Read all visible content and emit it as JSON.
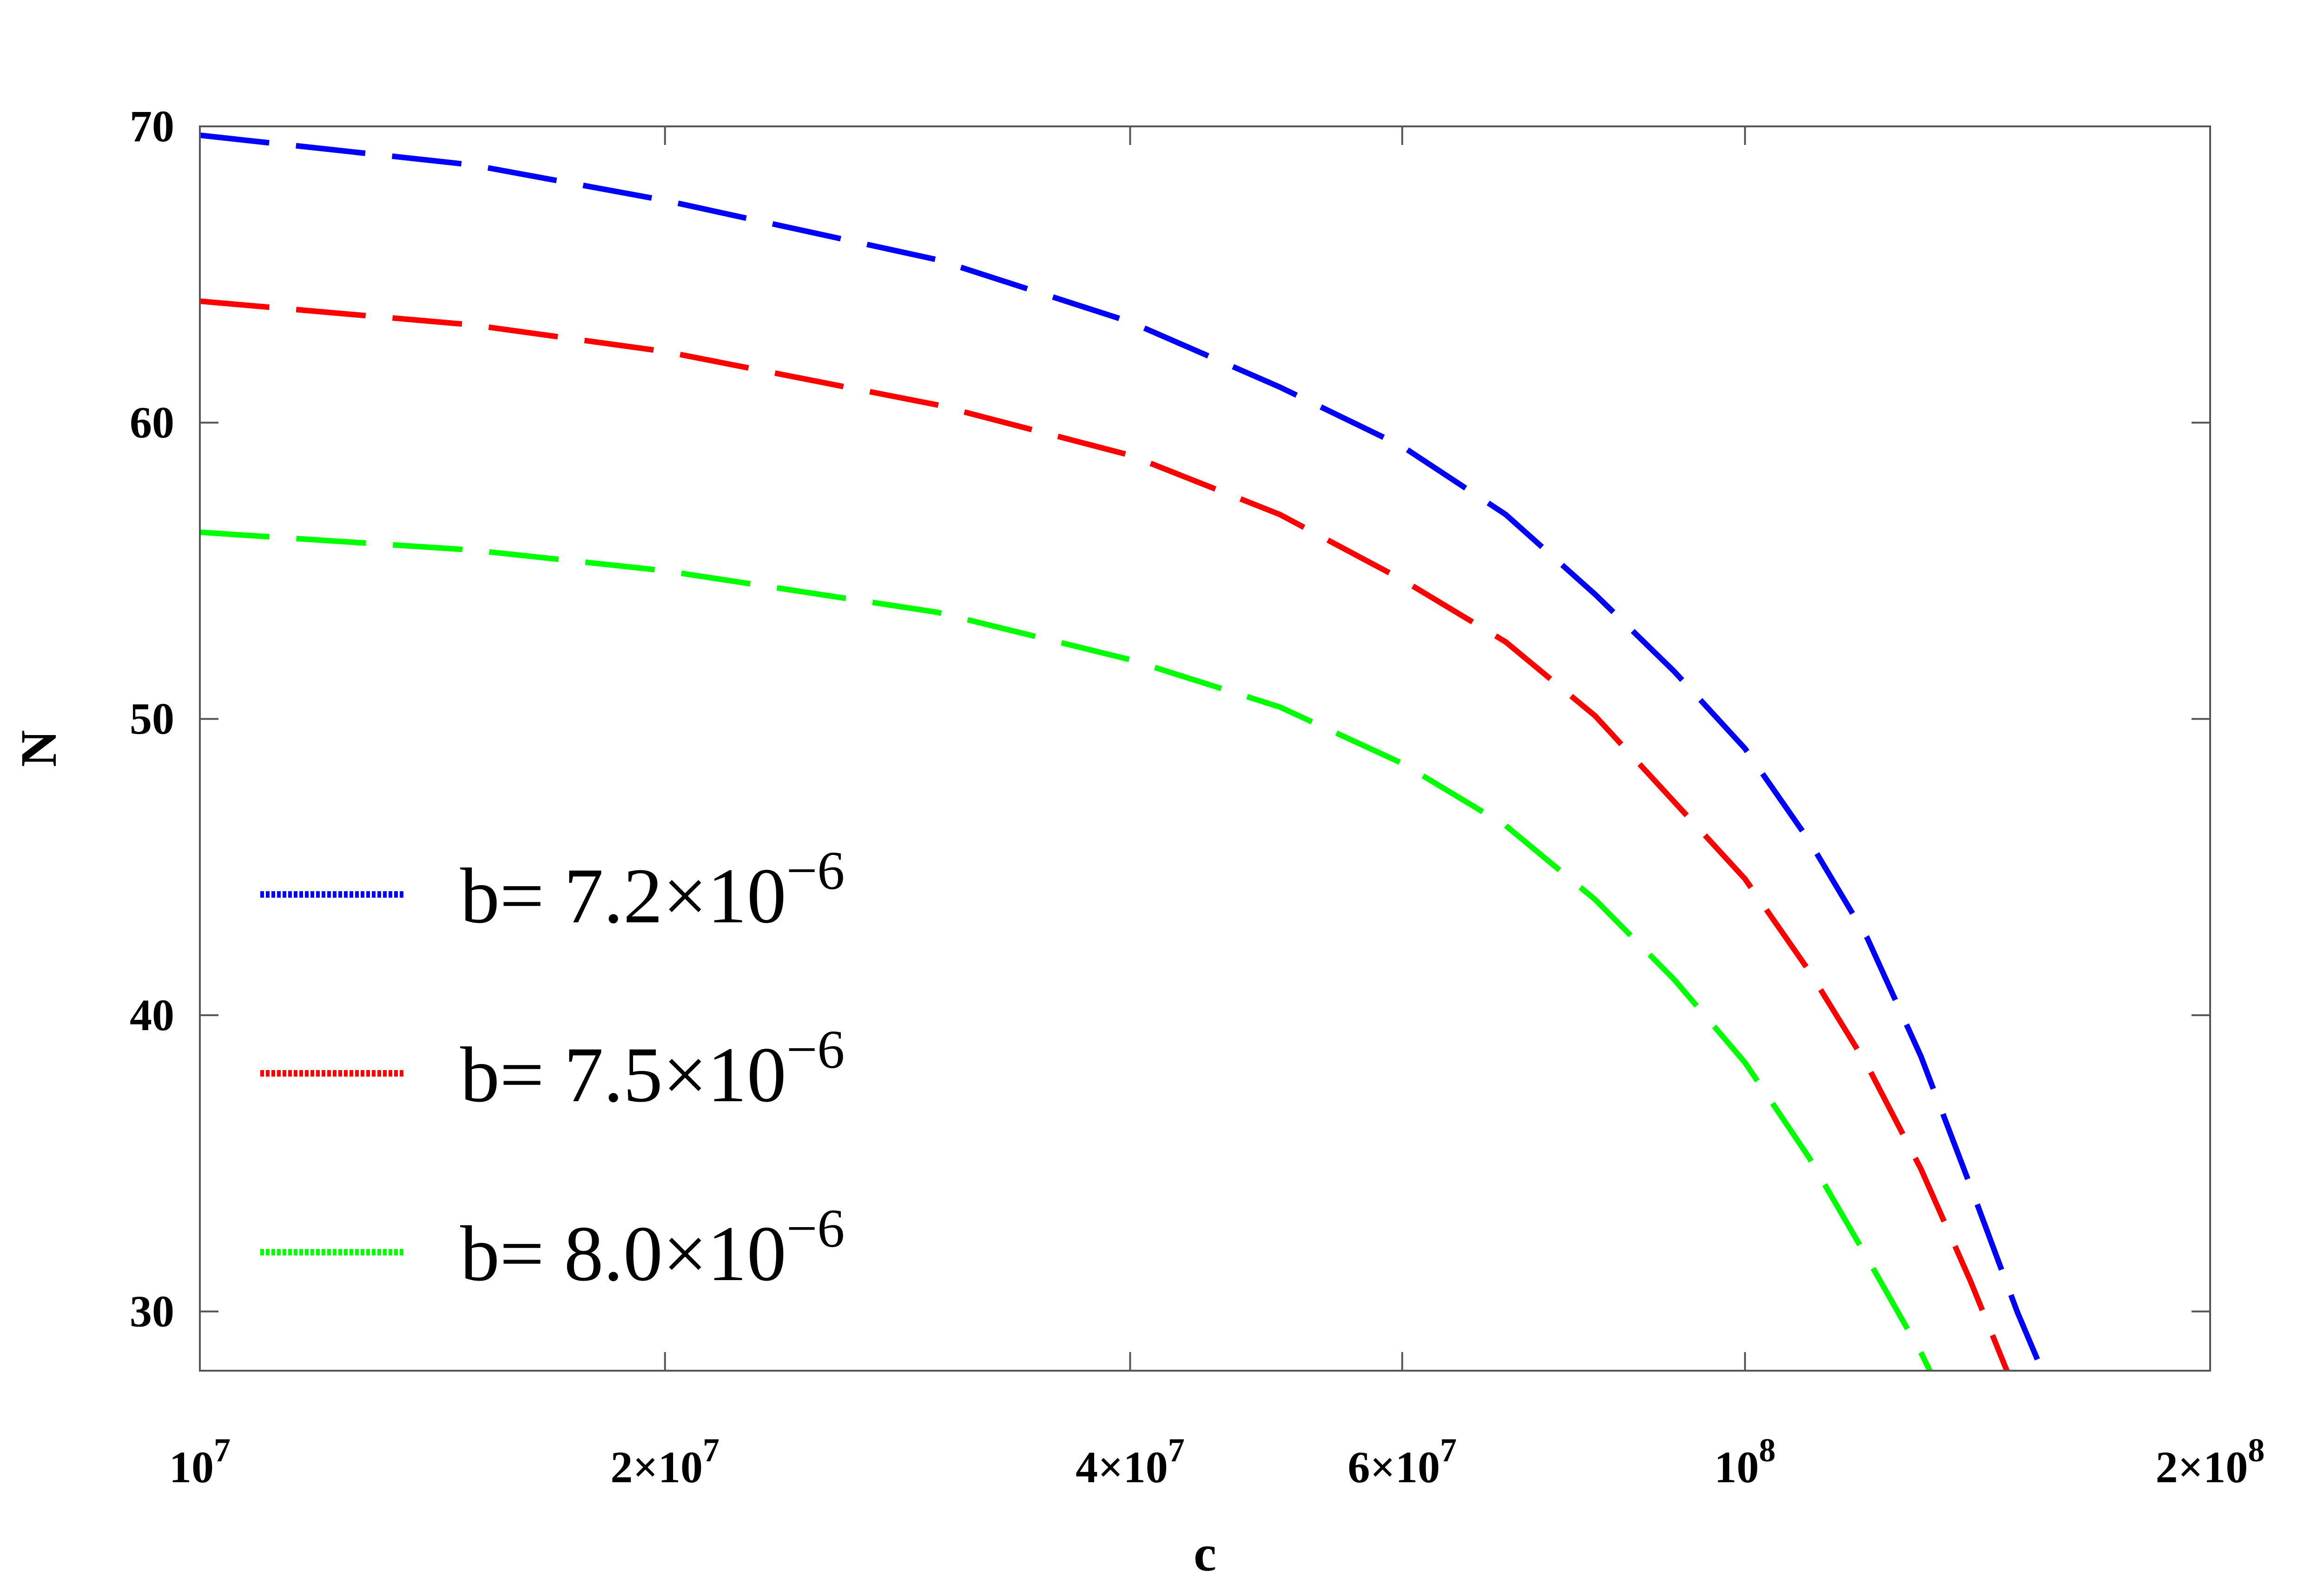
{
  "chart_data": {
    "type": "line",
    "xlabel": "c",
    "ylabel": "N",
    "x_scale": "log",
    "xlim": [
      10000000,
      200000000
    ],
    "ylim": [
      28,
      70
    ],
    "grid": false,
    "legend_position": "left",
    "x_ticks": [
      {
        "value": 10000000,
        "base": "10",
        "exp": "7"
      },
      {
        "value": 20000000,
        "base": "2×10",
        "exp": "7"
      },
      {
        "value": 40000000,
        "base": "4×10",
        "exp": "7"
      },
      {
        "value": 60000000,
        "base": "6×10",
        "exp": "7"
      },
      {
        "value": 100000000,
        "base": "10",
        "exp": "8"
      },
      {
        "value": 200000000,
        "base": "2×10",
        "exp": "8"
      }
    ],
    "y_ticks": [
      30,
      40,
      50,
      60,
      70
    ],
    "series": [
      {
        "name": "b= 7.2×10",
        "name_exp": "−6",
        "color": "#0000ff",
        "points": [
          [
            10000000,
            69.7
          ],
          [
            15000000,
            68.7
          ],
          [
            20000000,
            67.5
          ],
          [
            30000000,
            65.5
          ],
          [
            40000000,
            63.4
          ],
          [
            50000000,
            61.2
          ],
          [
            60000000,
            59.2
          ],
          [
            70000000,
            56.9
          ],
          [
            80000000,
            54.2
          ],
          [
            90000000,
            51.6
          ],
          [
            100000000,
            49.0
          ],
          [
            110000000,
            45.9
          ],
          [
            120000000,
            42.6
          ],
          [
            130000000,
            38.6
          ],
          [
            140000000,
            34.2
          ],
          [
            150000000,
            30.0
          ],
          [
            156000000,
            27.9
          ]
        ]
      },
      {
        "name": "b= 7.5×10",
        "name_exp": "−6",
        "color": "#ff0000",
        "points": [
          [
            10000000,
            64.1
          ],
          [
            15000000,
            63.3
          ],
          [
            20000000,
            62.4
          ],
          [
            30000000,
            60.6
          ],
          [
            40000000,
            58.9
          ],
          [
            50000000,
            56.9
          ],
          [
            60000000,
            54.7
          ],
          [
            70000000,
            52.6
          ],
          [
            80000000,
            50.1
          ],
          [
            90000000,
            47.2
          ],
          [
            100000000,
            44.6
          ],
          [
            110000000,
            41.5
          ],
          [
            120000000,
            38.3
          ],
          [
            130000000,
            34.8
          ],
          [
            140000000,
            31.0
          ],
          [
            148000000,
            27.9
          ]
        ]
      },
      {
        "name": "b= 8.0×10",
        "name_exp": "−6",
        "color": "#00ff00",
        "points": [
          [
            10000000,
            56.3
          ],
          [
            15000000,
            55.7
          ],
          [
            20000000,
            55.0
          ],
          [
            30000000,
            53.6
          ],
          [
            40000000,
            52.0
          ],
          [
            50000000,
            50.4
          ],
          [
            60000000,
            48.5
          ],
          [
            70000000,
            46.4
          ],
          [
            80000000,
            43.9
          ],
          [
            90000000,
            41.2
          ],
          [
            100000000,
            38.4
          ],
          [
            110000000,
            35.2
          ],
          [
            120000000,
            31.8
          ],
          [
            130000000,
            28.6
          ],
          [
            132000000,
            27.9
          ]
        ]
      }
    ]
  }
}
